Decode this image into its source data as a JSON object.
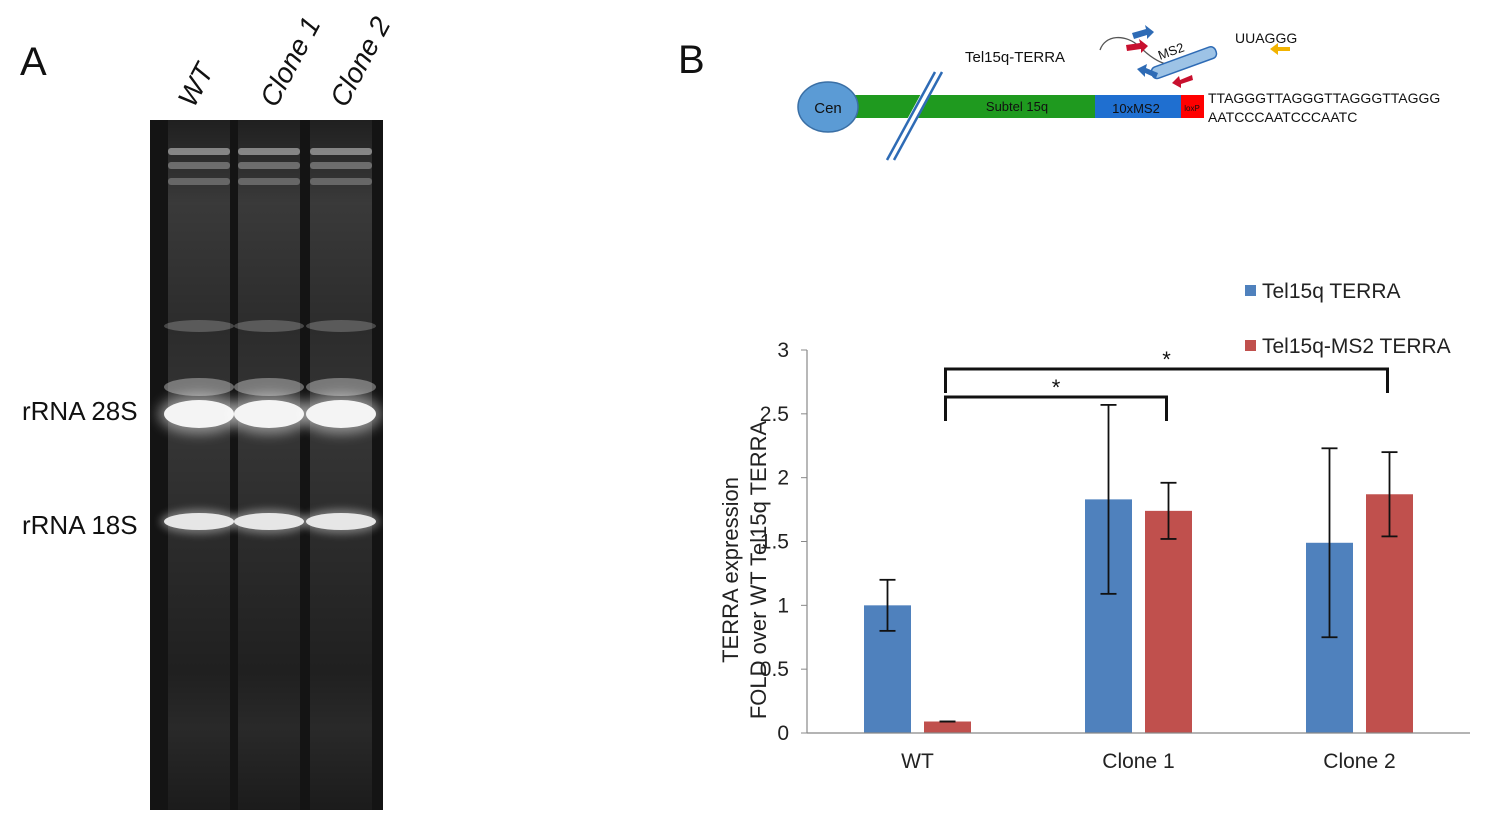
{
  "panels": {
    "a_label": "A",
    "b_label": "B"
  },
  "gel": {
    "lanes": [
      "WT",
      "Clone 1",
      "Clone 2"
    ],
    "band_labels": [
      "rRNA 28S",
      "rRNA 18S"
    ]
  },
  "construct": {
    "title": "Tel15q-TERRA",
    "cen": "Cen",
    "subtel": "Subtel 15q",
    "ms2_repeat": "10xMS2",
    "loxp": "loxP",
    "ms2": "MS2",
    "probe": "UUAGGG",
    "seq_top": "TTAGGGTTAGGGTTAGGGTTAGGG",
    "seq_bottom": "AATCCCAATCCCAATC",
    "colors": {
      "cen": "#5b9bd5",
      "subtel": "#1f9a1f",
      "ms2_repeat": "#1f6fd0",
      "loxp": "#ff0000",
      "arrow_blue": "#2e6bb5",
      "arrow_red": "#c8102e",
      "arrow_yellow": "#f2b300"
    }
  },
  "chart_data": {
    "type": "bar",
    "categories": [
      "WT",
      "Clone 1",
      "Clone 2"
    ],
    "series": [
      {
        "name": "Tel15q TERRA",
        "color": "#4f81bd",
        "values": [
          1.0,
          1.83,
          1.49
        ],
        "errors": [
          0.2,
          0.74,
          0.74
        ]
      },
      {
        "name": "Tel15q-MS2 TERRA",
        "color": "#c0504d",
        "values": [
          0.09,
          1.74,
          1.87
        ],
        "errors": [
          0.0,
          0.22,
          0.33
        ]
      }
    ],
    "ylim": [
      0,
      3
    ],
    "yticks": [
      "0",
      "0.5",
      "1",
      "1.5",
      "2",
      "2.5",
      "3"
    ],
    "ylabel_line1": "TERRA expression",
    "ylabel_line2": "FOLD over WT Tel15q TERRA",
    "legend_position": "top-right",
    "significance": [
      {
        "from": "WT",
        "to": "Clone 1",
        "marker": "*"
      },
      {
        "from": "WT",
        "to": "Clone 2",
        "marker": "*"
      }
    ]
  }
}
